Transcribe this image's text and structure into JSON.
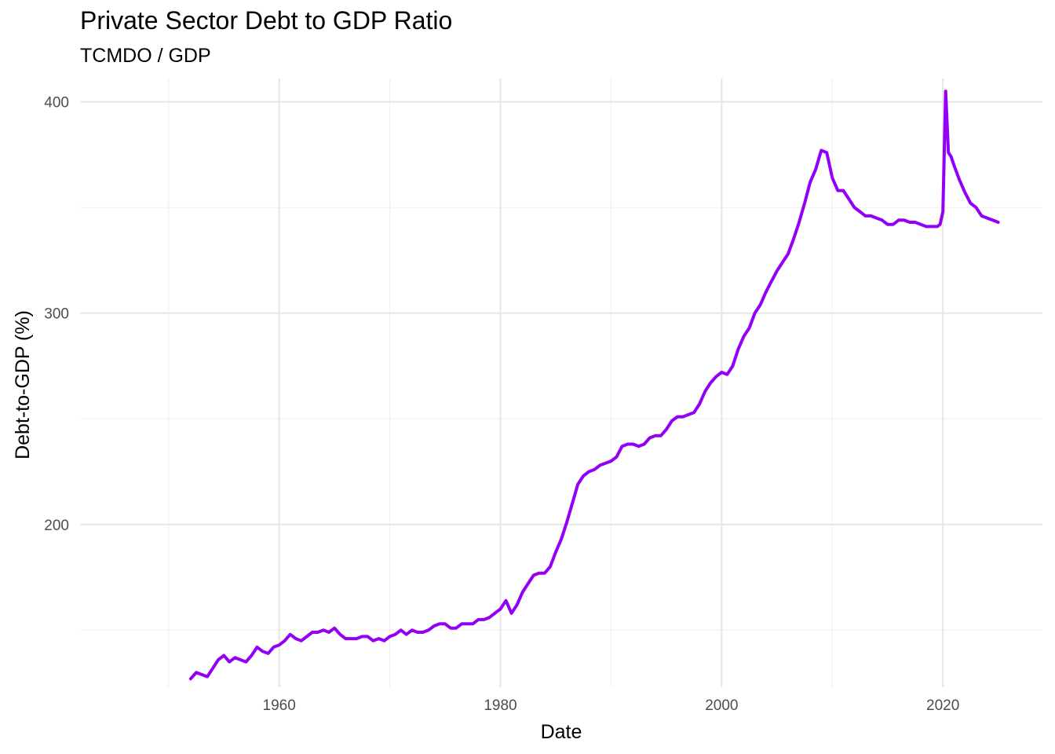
{
  "title": "Private Sector Debt to GDP Ratio",
  "subtitle": "TCMDO / GDP",
  "colors": {
    "line": "#9400F5",
    "grid_major": "#e6e6e6",
    "grid_minor": "#f0f0f0",
    "tick_text": "#4d4d4d"
  },
  "chart_data": {
    "type": "line",
    "title": "Private Sector Debt to GDP Ratio",
    "subtitle": "TCMDO / GDP",
    "xlabel": "Date",
    "ylabel": "Debt-to-GDP (%)",
    "xlim": [
      1942,
      2029
    ],
    "ylim": [
      123,
      411
    ],
    "x_ticks": [
      1960,
      1980,
      2000,
      2020
    ],
    "x_tick_labels": [
      "1960",
      "1980",
      "2000",
      "2020"
    ],
    "y_ticks": [
      200,
      300,
      400
    ],
    "y_tick_labels": [
      "200",
      "300",
      "400"
    ],
    "grid": true,
    "legend": "none",
    "series": [
      {
        "x": [
          1952.0,
          1952.5,
          1953.0,
          1953.5,
          1954.0,
          1954.5,
          1955.0,
          1955.5,
          1956.0,
          1956.5,
          1957.0,
          1957.5,
          1958.0,
          1958.5,
          1959.0,
          1959.5,
          1960.0,
          1960.5,
          1961.0,
          1961.5,
          1962.0,
          1962.5,
          1963.0,
          1963.5,
          1964.0,
          1964.5,
          1965.0,
          1965.5,
          1966.0,
          1966.5,
          1967.0,
          1967.5,
          1968.0,
          1968.5,
          1969.0,
          1969.5,
          1970.0,
          1970.5,
          1971.0,
          1971.5,
          1972.0,
          1972.5,
          1973.0,
          1973.5,
          1974.0,
          1974.5,
          1975.0,
          1975.5,
          1976.0,
          1976.5,
          1977.0,
          1977.5,
          1978.0,
          1978.5,
          1979.0,
          1979.5,
          1980.0,
          1980.5,
          1981.0,
          1981.5,
          1982.0,
          1982.5,
          1983.0,
          1983.5,
          1984.0,
          1984.5,
          1985.0,
          1985.5,
          1986.0,
          1986.5,
          1987.0,
          1987.5,
          1988.0,
          1988.5,
          1989.0,
          1989.5,
          1990.0,
          1990.5,
          1991.0,
          1991.5,
          1992.0,
          1992.5,
          1993.0,
          1993.5,
          1994.0,
          1994.5,
          1995.0,
          1995.5,
          1996.0,
          1996.5,
          1997.0,
          1997.5,
          1998.0,
          1998.5,
          1999.0,
          1999.5,
          2000.0,
          2000.5,
          2001.0,
          2001.5,
          2002.0,
          2002.5,
          2003.0,
          2003.5,
          2004.0,
          2004.5,
          2005.0,
          2005.5,
          2006.0,
          2006.5,
          2007.0,
          2007.5,
          2008.0,
          2008.5,
          2009.0,
          2009.5,
          2010.0,
          2010.5,
          2011.0,
          2011.5,
          2012.0,
          2012.5,
          2013.0,
          2013.5,
          2014.0,
          2014.5,
          2015.0,
          2015.5,
          2016.0,
          2016.5,
          2017.0,
          2017.5,
          2018.0,
          2018.5,
          2019.0,
          2019.5,
          2019.75,
          2020.0,
          2020.25,
          2020.5,
          2020.75,
          2021.0,
          2021.5,
          2022.0,
          2022.5,
          2023.0,
          2023.5,
          2024.0,
          2024.5,
          2025.0
        ],
        "y": [
          127,
          130,
          129,
          128,
          132,
          136,
          138,
          135,
          137,
          136,
          135,
          138,
          142,
          140,
          139,
          142,
          143,
          145,
          148,
          146,
          145,
          147,
          149,
          149,
          150,
          149,
          151,
          148,
          146,
          146,
          146,
          147,
          147,
          145,
          146,
          145,
          147,
          148,
          150,
          148,
          150,
          149,
          149,
          150,
          152,
          153,
          153,
          151,
          151,
          153,
          153,
          153,
          155,
          155,
          156,
          158,
          160,
          164,
          158,
          162,
          168,
          172,
          176,
          177,
          177,
          180,
          187,
          193,
          201,
          210,
          219,
          223,
          225,
          226,
          228,
          229,
          230,
          232,
          237,
          238,
          238,
          237,
          238,
          241,
          242,
          242,
          245,
          249,
          251,
          251,
          252,
          253,
          257,
          263,
          267,
          270,
          272,
          271,
          275,
          283,
          289,
          293,
          300,
          304,
          310,
          315,
          320,
          324,
          328,
          335,
          343,
          352,
          362,
          368,
          377,
          376,
          364,
          358,
          358,
          354,
          350,
          348,
          346,
          346,
          345,
          344,
          342,
          342,
          344,
          344,
          343,
          343,
          342,
          341,
          341,
          341,
          342,
          348,
          405,
          376,
          374,
          370,
          363,
          357,
          352,
          350,
          346,
          345,
          344,
          343
        ]
      }
    ]
  }
}
